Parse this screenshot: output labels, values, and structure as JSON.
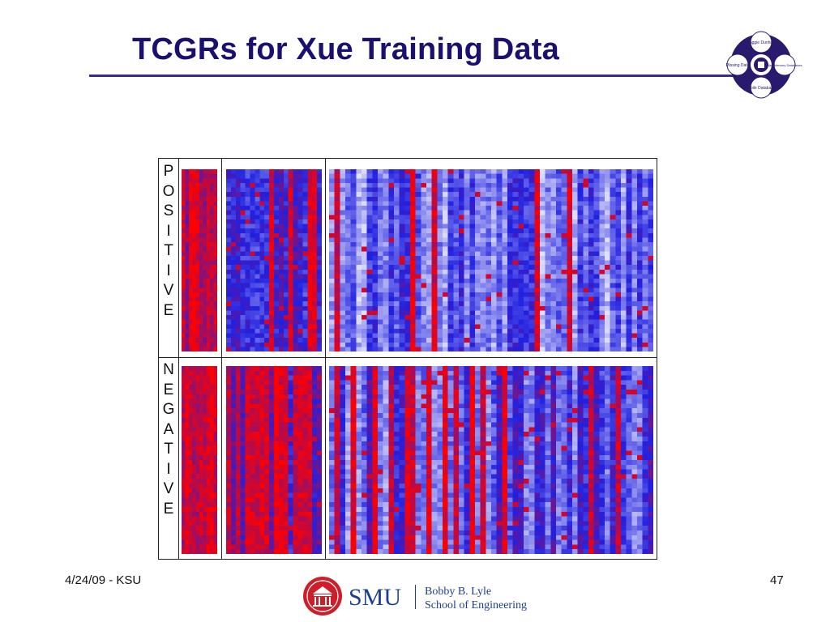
{
  "slide": {
    "title": "TCGRs for Xue Training Data",
    "footer_date": "4/24/09 - KSU",
    "page_number": "47"
  },
  "corner_logo": {
    "labels": [
      "Maggie Dunham",
      "Missing Data",
      "MainMemory Databases",
      "Mobile Databases"
    ],
    "color": "#2a1a6e"
  },
  "figure": {
    "positive_label": [
      "P",
      "O",
      "S",
      "I",
      "T",
      "I",
      "V",
      "E"
    ],
    "negative_label": [
      "N",
      "E",
      "G",
      "A",
      "T",
      "I",
      "V",
      "E"
    ],
    "palette": {
      "low": "#ffffff",
      "mid": "#2020e0",
      "high": "#ff0000"
    }
  },
  "smu_logo": {
    "wordmark": "SMU",
    "school_line1": "Bobby B. Lyle",
    "school_line2": "School of Engineering",
    "color": "#1e3f8f",
    "seal_color": "#cc1f2a"
  }
}
